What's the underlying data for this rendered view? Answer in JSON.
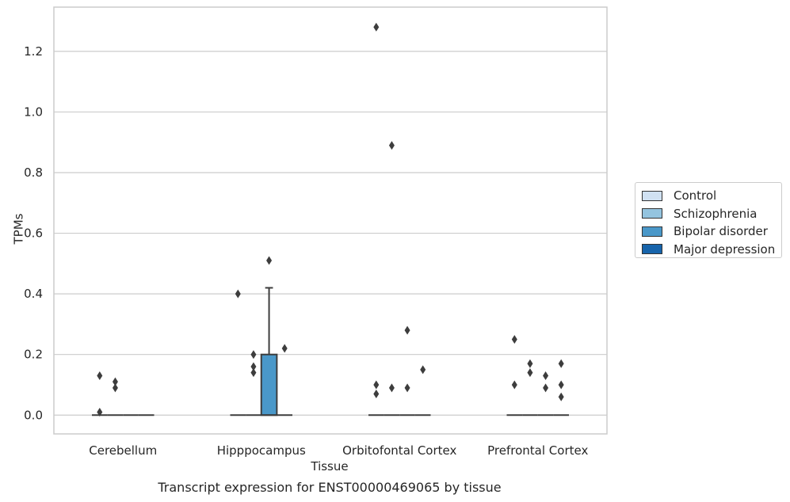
{
  "chart_data": {
    "type": "box",
    "title": "Transcript expression for ENST00000469065 by tissue",
    "xlabel": "Tissue",
    "ylabel": "TPMs",
    "ylim": [
      -0.062,
      1.346
    ],
    "yticks": [
      0.0,
      0.2,
      0.4,
      0.6,
      0.8,
      1.0,
      1.2
    ],
    "ytick_labels": [
      "0.0",
      "0.2",
      "0.4",
      "0.6",
      "0.8",
      "1.0",
      "1.2"
    ],
    "categories": [
      "Cerebellum",
      "Hipppocampus",
      "Orbitofontal Cortex",
      "Prefrontal Cortex"
    ],
    "grid": true,
    "legend_position": "right",
    "series": [
      {
        "name": "Control",
        "color": "#d0e1f2",
        "boxes": [
          {
            "category": "Cerebellum",
            "q1": 0,
            "median": 0,
            "q3": 0,
            "whisker_low": 0,
            "whisker_high": 0,
            "outliers": [
              0.13,
              0.01
            ]
          },
          {
            "category": "Hipppocampus",
            "q1": 0,
            "median": 0,
            "q3": 0,
            "whisker_low": 0,
            "whisker_high": 0,
            "outliers": [
              0.4
            ]
          },
          {
            "category": "Orbitofontal Cortex",
            "q1": 0,
            "median": 0,
            "q3": 0,
            "whisker_low": 0,
            "whisker_high": 0,
            "outliers": [
              1.28,
              0.1,
              0.07
            ]
          },
          {
            "category": "Prefrontal Cortex",
            "q1": 0,
            "median": 0,
            "q3": 0,
            "whisker_low": 0,
            "whisker_high": 0,
            "outliers": [
              0.25,
              0.1
            ]
          }
        ]
      },
      {
        "name": "Schizophrenia",
        "color": "#94c4df",
        "boxes": [
          {
            "category": "Cerebellum",
            "q1": 0,
            "median": 0,
            "q3": 0,
            "whisker_low": 0,
            "whisker_high": 0,
            "outliers": [
              0.11,
              0.09
            ]
          },
          {
            "category": "Hipppocampus",
            "q1": 0,
            "median": 0,
            "q3": 0,
            "whisker_low": 0,
            "whisker_high": 0,
            "outliers": [
              0.2,
              0.16,
              0.14
            ]
          },
          {
            "category": "Orbitofontal Cortex",
            "q1": 0,
            "median": 0,
            "q3": 0,
            "whisker_low": 0,
            "whisker_high": 0,
            "outliers": [
              0.89,
              0.09
            ]
          },
          {
            "category": "Prefrontal Cortex",
            "q1": 0,
            "median": 0,
            "q3": 0,
            "whisker_low": 0,
            "whisker_high": 0,
            "outliers": [
              0.17,
              0.14
            ]
          }
        ]
      },
      {
        "name": "Bipolar disorder",
        "color": "#4a98c9",
        "boxes": [
          {
            "category": "Cerebellum",
            "q1": 0,
            "median": 0,
            "q3": 0,
            "whisker_low": 0,
            "whisker_high": 0,
            "outliers": []
          },
          {
            "category": "Hipppocampus",
            "q1": 0,
            "median": 0,
            "q3": 0.2,
            "whisker_low": 0,
            "whisker_high": 0.42,
            "outliers": [
              0.51
            ]
          },
          {
            "category": "Orbitofontal Cortex",
            "q1": 0,
            "median": 0,
            "q3": 0,
            "whisker_low": 0,
            "whisker_high": 0,
            "outliers": [
              0.28,
              0.09
            ]
          },
          {
            "category": "Prefrontal Cortex",
            "q1": 0,
            "median": 0,
            "q3": 0,
            "whisker_low": 0,
            "whisker_high": 0,
            "outliers": [
              0.13,
              0.09
            ]
          }
        ]
      },
      {
        "name": "Major depression",
        "color": "#1764ab",
        "boxes": [
          {
            "category": "Cerebellum",
            "q1": 0,
            "median": 0,
            "q3": 0,
            "whisker_low": 0,
            "whisker_high": 0,
            "outliers": []
          },
          {
            "category": "Hipppocampus",
            "q1": 0,
            "median": 0,
            "q3": 0,
            "whisker_low": 0,
            "whisker_high": 0,
            "outliers": [
              0.22
            ]
          },
          {
            "category": "Orbitofontal Cortex",
            "q1": 0,
            "median": 0,
            "q3": 0,
            "whisker_low": 0,
            "whisker_high": 0,
            "outliers": [
              0.15
            ]
          },
          {
            "category": "Prefrontal Cortex",
            "q1": 0,
            "median": 0,
            "q3": 0,
            "whisker_low": 0,
            "whisker_high": 0,
            "outliers": [
              0.17,
              0.1,
              0.06
            ]
          }
        ]
      }
    ]
  }
}
